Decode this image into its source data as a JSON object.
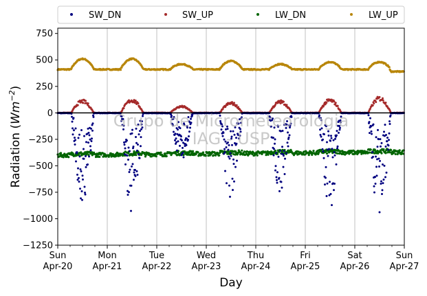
{
  "chart_data": {
    "type": "scatter",
    "ylabel_main": "Radiation (",
    "ylabel_unit": "Wm",
    "ylabel_exp": "−2",
    "ylabel_close": ")",
    "xlabel": "Day",
    "ylim": [
      -1250,
      800
    ],
    "yticks": [
      750,
      500,
      250,
      0,
      -250,
      -500,
      -750,
      -1000,
      -1250
    ],
    "ytick_labels": [
      "750",
      "500",
      "250",
      "0",
      "−250",
      "−500",
      "−750",
      "−1000",
      "−1250"
    ],
    "xlim": [
      0,
      7
    ],
    "xticks": [
      {
        "day": 0,
        "line1": "Sun",
        "line2": "Apr-20"
      },
      {
        "day": 1,
        "line1": "Mon",
        "line2": "Apr-21"
      },
      {
        "day": 2,
        "line1": "Tue",
        "line2": "Apr-22"
      },
      {
        "day": 3,
        "line1": "Wed",
        "line2": "Apr-23"
      },
      {
        "day": 4,
        "line1": "Thu",
        "line2": "Apr-24"
      },
      {
        "day": 5,
        "line1": "Fri",
        "line2": "Apr-25"
      },
      {
        "day": 6,
        "line1": "Sat",
        "line2": "Apr-26"
      },
      {
        "day": 7,
        "line1": "Sun",
        "line2": "Apr-27"
      }
    ],
    "grid": {
      "x": true,
      "y": false
    },
    "legend_position": "top",
    "watermark_line1": "Grupo de Micrometeorologia",
    "watermark_line2": "IAG - USP",
    "series": [
      {
        "name": "SW_DN",
        "color": "#00007f",
        "daily_peak": [
          -870,
          -940,
          -440,
          -820,
          -760,
          -900,
          -1010
        ]
      },
      {
        "name": "SW_UP",
        "color": "#a52a2a",
        "daily_peak": [
          120,
          130,
          65,
          100,
          115,
          130,
          150
        ]
      },
      {
        "name": "LW_DN",
        "color": "#006400",
        "night_level": -400,
        "day_level": -370
      },
      {
        "name": "LW_UP",
        "color": "#b8860b",
        "night_level": 410,
        "daily_peak": [
          510,
          510,
          460,
          490,
          460,
          480,
          480
        ]
      }
    ]
  }
}
